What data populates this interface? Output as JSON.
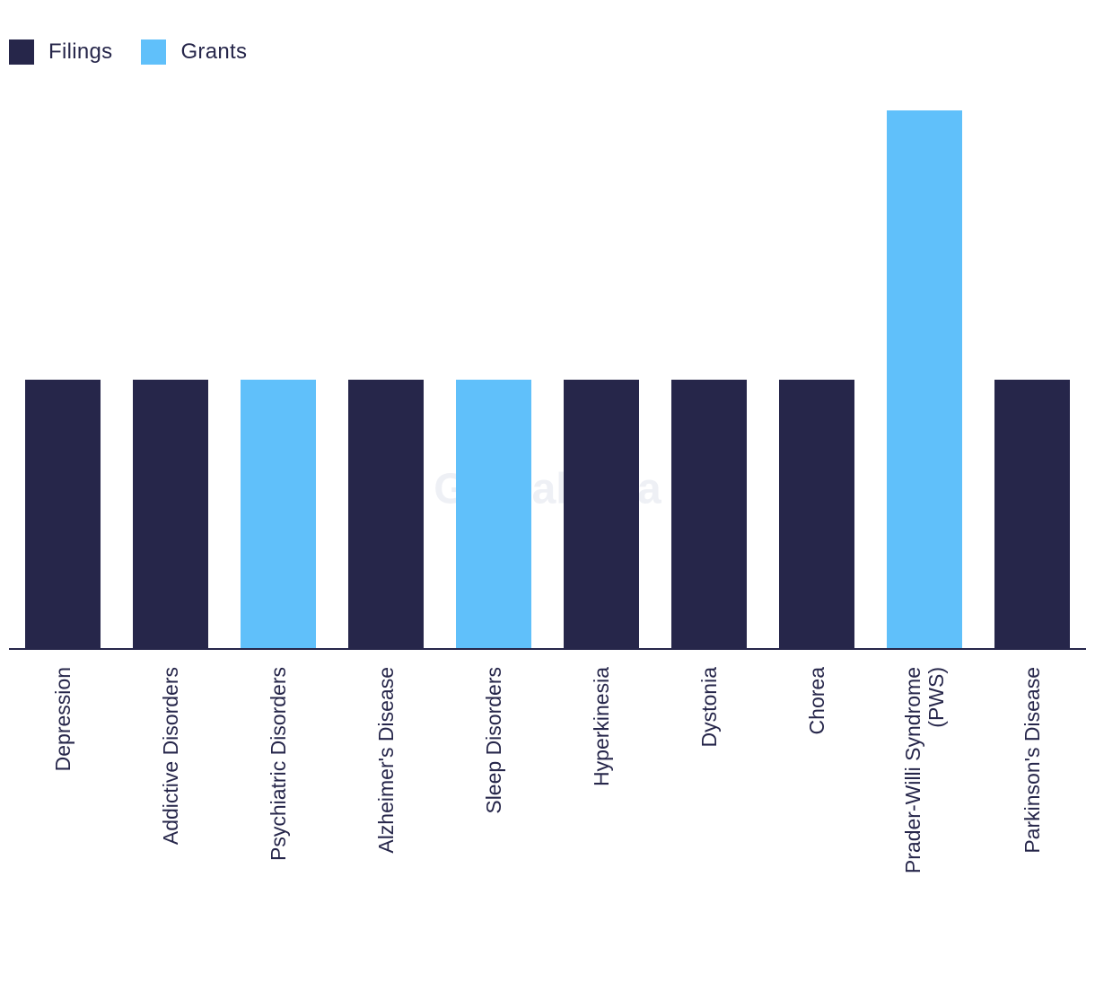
{
  "legend": {
    "items": [
      {
        "label": "Filings",
        "color": "#26264a"
      },
      {
        "label": "Grants",
        "color": "#60c0fa"
      }
    ]
  },
  "watermark": "GlobalData",
  "chart_data": {
    "type": "bar",
    "title": "",
    "xlabel": "",
    "ylabel": "",
    "ylim": [
      0,
      2
    ],
    "grid": false,
    "legend_position": "top-left",
    "categories": [
      "Depression",
      "Addictive Disorders",
      "Psychiatric Disorders",
      "Alzheimer's Disease",
      "Sleep Disorders",
      "Hyperkinesia",
      "Dystonia",
      "Chorea",
      [
        "Prader-Willi Syndrome",
        "(PWS)"
      ],
      "Parkinson's Disease"
    ],
    "series": [
      {
        "name": "Filings",
        "color": "#26264a",
        "values": [
          1,
          1,
          0,
          1,
          0,
          1,
          1,
          1,
          0,
          1
        ]
      },
      {
        "name": "Grants",
        "color": "#60c0fa",
        "values": [
          0,
          0,
          1,
          0,
          1,
          0,
          0,
          0,
          2,
          0
        ]
      }
    ]
  }
}
